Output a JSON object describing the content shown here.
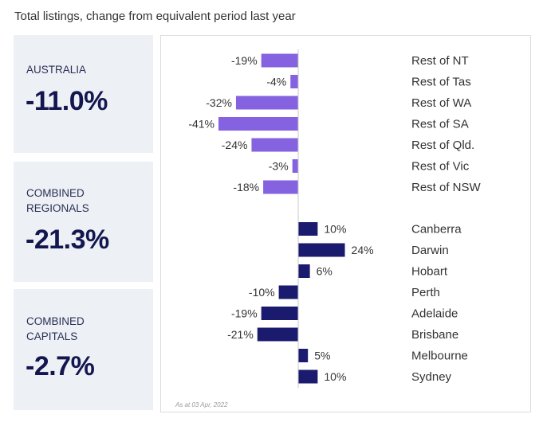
{
  "title": "Total listings, change from equivalent period last year",
  "stats": [
    {
      "label": "AUSTRALIA",
      "value": "-11.0%"
    },
    {
      "label": "COMBINED REGIONALS",
      "value": "-21.3%"
    },
    {
      "label": "COMBINED CAPITALS",
      "value": "-2.7%"
    }
  ],
  "footnote": "As at 03 Apr, 2022",
  "colors": {
    "regional": "#8462e0",
    "capital": "#1a1a6e",
    "axis": "#c8c8c8",
    "label": "#333333"
  },
  "chart_data": {
    "type": "bar",
    "orientation": "horizontal",
    "title": "Total listings, change from equivalent period last year",
    "unit": "%",
    "series": [
      {
        "name": "Regional",
        "categories": [
          "Rest of NT",
          "Rest of Tas",
          "Rest of WA",
          "Rest of SA",
          "Rest of Qld.",
          "Rest of Vic",
          "Rest of NSW"
        ],
        "values": [
          -19,
          -4,
          -32,
          -41,
          -24,
          -3,
          -18
        ],
        "labels": [
          "-19%",
          "-4%",
          "-32%",
          "-41%",
          "-24%",
          "-3%",
          "-18%"
        ]
      },
      {
        "name": "Capitals",
        "categories": [
          "Canberra",
          "Darwin",
          "Hobart",
          "Perth",
          "Adelaide",
          "Brisbane",
          "Melbourne",
          "Sydney"
        ],
        "values": [
          10,
          24,
          6,
          -10,
          -19,
          -21,
          5,
          10
        ],
        "labels": [
          "10%",
          "24%",
          "6%",
          "-10%",
          "-19%",
          "-21%",
          "5%",
          "10%"
        ]
      }
    ],
    "xlim": [
      -45,
      30
    ]
  }
}
